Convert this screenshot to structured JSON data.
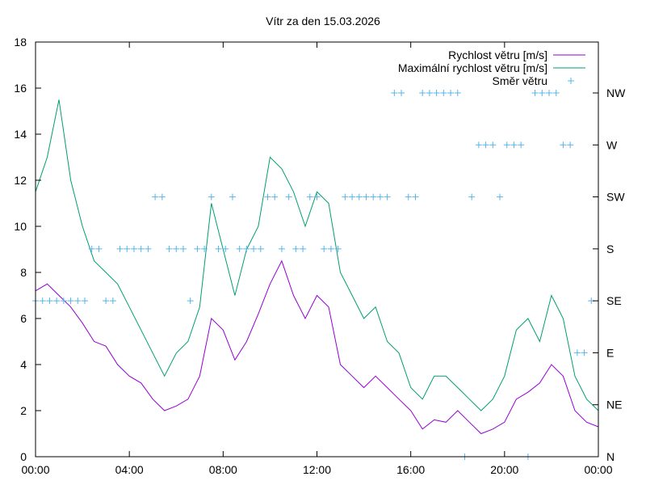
{
  "chart_data": {
    "type": "line",
    "title": "Vítr za den 15.03.2026",
    "xlabel": "",
    "ylabel": "",
    "x_range": [
      0,
      24
    ],
    "x_ticks": [
      "00:00",
      "04:00",
      "08:00",
      "12:00",
      "16:00",
      "20:00",
      "00:00"
    ],
    "ylim": [
      0,
      18
    ],
    "y_ticks": [
      "0",
      "2",
      "4",
      "6",
      "8",
      "10",
      "12",
      "14",
      "16",
      "18"
    ],
    "y2_ticks": [
      "N",
      "NE",
      "E",
      "SE",
      "S",
      "SW",
      "W",
      "NW"
    ],
    "legend_position": "top-right",
    "grid": false,
    "colors": {
      "speed": "#9400d3",
      "gust": "#009e73",
      "direction": "#56b4e9"
    },
    "series": [
      {
        "name": "Rychlost větru [m/s]",
        "style": "line",
        "x": [
          0.0,
          0.5,
          1.0,
          1.5,
          2.0,
          2.5,
          3.0,
          3.5,
          4.0,
          4.5,
          5.0,
          5.5,
          6.0,
          6.5,
          7.0,
          7.5,
          8.0,
          8.5,
          9.0,
          9.5,
          10.0,
          10.5,
          11.0,
          11.5,
          12.0,
          12.5,
          13.0,
          13.5,
          14.0,
          14.5,
          15.0,
          15.5,
          16.0,
          16.5,
          17.0,
          17.5,
          18.0,
          18.5,
          19.0,
          19.5,
          20.0,
          20.5,
          21.0,
          21.5,
          22.0,
          22.5,
          23.0,
          23.5,
          24.0
        ],
        "values": [
          7.2,
          7.5,
          7.0,
          6.5,
          5.8,
          5.0,
          4.8,
          4.0,
          3.5,
          3.2,
          2.5,
          2.0,
          2.2,
          2.5,
          3.5,
          6.0,
          5.5,
          4.2,
          5.0,
          6.2,
          7.5,
          8.5,
          7.0,
          6.0,
          7.0,
          6.5,
          4.0,
          3.5,
          3.0,
          3.5,
          3.0,
          2.5,
          2.0,
          1.2,
          1.6,
          1.5,
          2.0,
          1.5,
          1.0,
          1.2,
          1.5,
          2.5,
          2.8,
          3.2,
          4.0,
          3.5,
          2.0,
          1.5,
          1.3
        ]
      },
      {
        "name": "Maximální rychlost větru [m/s]",
        "style": "line",
        "x": [
          0.0,
          0.5,
          1.0,
          1.5,
          2.0,
          2.5,
          3.0,
          3.5,
          4.0,
          4.5,
          5.0,
          5.5,
          6.0,
          6.5,
          7.0,
          7.5,
          8.0,
          8.5,
          9.0,
          9.5,
          10.0,
          10.5,
          11.0,
          11.5,
          12.0,
          12.5,
          13.0,
          13.5,
          14.0,
          14.5,
          15.0,
          15.5,
          16.0,
          16.5,
          17.0,
          17.5,
          18.0,
          18.5,
          19.0,
          19.5,
          20.0,
          20.5,
          21.0,
          21.5,
          22.0,
          22.5,
          23.0,
          23.5,
          24.0
        ],
        "values": [
          11.5,
          13.0,
          15.5,
          12.0,
          10.0,
          8.5,
          8.0,
          7.5,
          6.5,
          5.5,
          4.5,
          3.5,
          4.5,
          5.0,
          6.5,
          11.0,
          9.0,
          7.0,
          9.0,
          10.0,
          13.0,
          12.5,
          11.5,
          10.0,
          11.5,
          11.0,
          8.0,
          7.0,
          6.0,
          6.5,
          5.0,
          4.5,
          3.0,
          2.5,
          3.5,
          3.5,
          3.0,
          2.5,
          2.0,
          2.5,
          3.5,
          5.5,
          6.0,
          5.0,
          7.0,
          6.0,
          3.5,
          2.5,
          2.0
        ]
      },
      {
        "name": "Směr větru",
        "style": "points",
        "axis": "y2",
        "x": [
          0.0,
          0.3,
          0.6,
          0.9,
          1.2,
          1.5,
          1.8,
          2.1,
          2.4,
          2.7,
          3.0,
          3.3,
          3.6,
          3.9,
          4.2,
          4.5,
          4.8,
          5.1,
          5.4,
          5.7,
          6.0,
          6.3,
          6.6,
          6.9,
          7.2,
          7.5,
          7.8,
          8.1,
          8.4,
          8.7,
          9.0,
          9.3,
          9.6,
          9.9,
          10.2,
          10.5,
          10.8,
          11.1,
          11.4,
          11.7,
          12.0,
          12.3,
          12.6,
          12.9,
          13.2,
          13.5,
          13.8,
          14.1,
          14.4,
          14.7,
          15.0,
          15.3,
          15.6,
          15.9,
          16.2,
          16.5,
          16.8,
          17.1,
          17.4,
          17.7,
          18.0,
          18.3,
          18.6,
          18.9,
          19.2,
          19.5,
          19.8,
          20.1,
          20.4,
          20.7,
          21.0,
          21.3,
          21.6,
          21.9,
          22.2,
          22.5,
          22.8,
          23.1,
          23.4,
          23.7
        ],
        "values": [
          "SE",
          "SE",
          "SE",
          "SE",
          "SE",
          "SE",
          "SE",
          "SE",
          "S",
          "S",
          "SE",
          "SE",
          "S",
          "S",
          "S",
          "S",
          "S",
          "SW",
          "SW",
          "S",
          "S",
          "S",
          "SE",
          "S",
          "S",
          "SW",
          "S",
          "S",
          "SW",
          "S",
          "S",
          "S",
          "S",
          "SW",
          "SW",
          "S",
          "SW",
          "S",
          "S",
          "SW",
          "SW",
          "S",
          "S",
          "S",
          "SW",
          "SW",
          "SW",
          "SW",
          "SW",
          "SW",
          "SW",
          "NW",
          "NW",
          "SW",
          "SW",
          "NW",
          "NW",
          "NW",
          "NW",
          "NW",
          "NW",
          "N",
          "SW",
          "W",
          "W",
          "W",
          "SW",
          "W",
          "W",
          "W",
          "N",
          "NW",
          "NW",
          "NW",
          "NW",
          "W",
          "W",
          "E",
          "E",
          "SE"
        ]
      }
    ]
  }
}
